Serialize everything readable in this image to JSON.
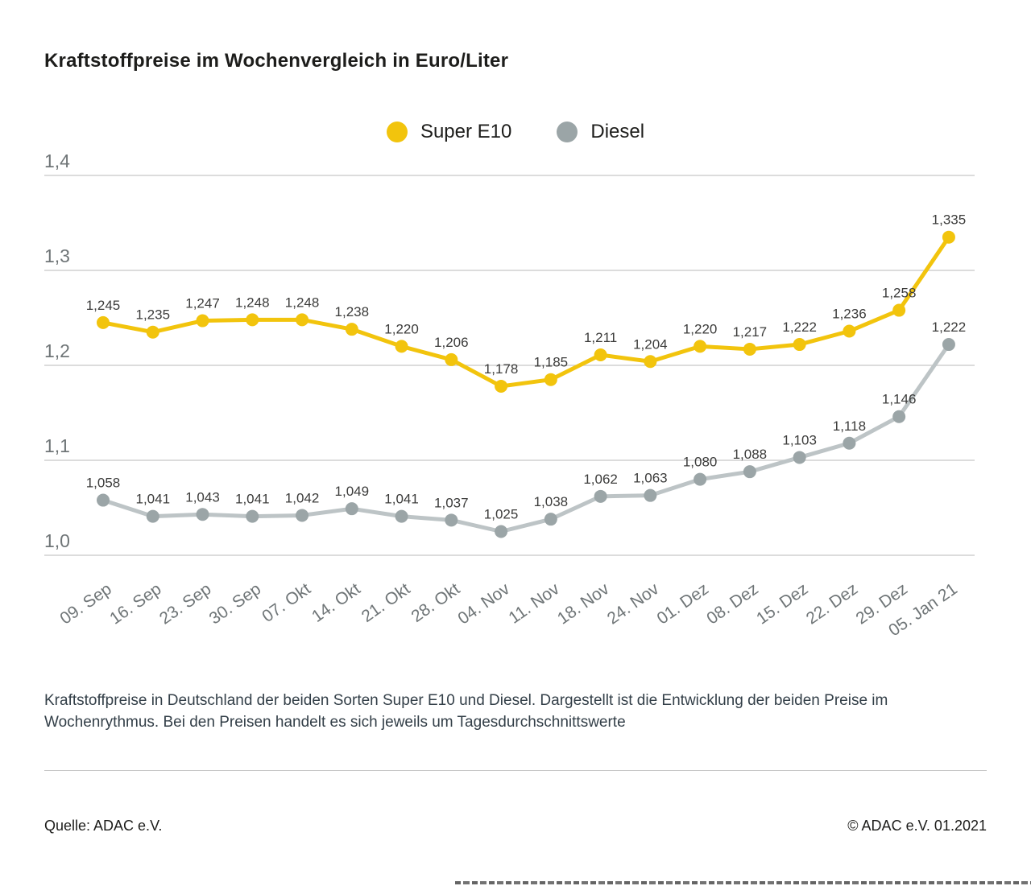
{
  "page": {
    "title": "Kraftstoffpreise im Wochenvergleich in Euro/Liter",
    "caption": "Kraftstoffpreise in Deutschland der beiden Sorten Super E10 und Diesel. Dargestellt ist die Entwicklung der beiden Preise im Wochenrythmus. Bei den Preisen handelt es sich jeweils um Tagesdurchschnittswerte",
    "source_left": "Quelle: ADAC e.V.",
    "source_right": "© ADAC e.V. 01.2021"
  },
  "chart_data": {
    "type": "line",
    "title": "Kraftstoffpreise im Wochenvergleich in Euro/Liter",
    "unit": "Euro/Liter",
    "categories": [
      "09. Sep",
      "16. Sep",
      "23. Sep",
      "30. Sep",
      "07. Okt",
      "14. Okt",
      "21. Okt",
      "28. Okt",
      "04. Nov",
      "11. Nov",
      "18. Nov",
      "24. Nov",
      "01. Dez",
      "08. Dez",
      "15. Dez",
      "22. Dez",
      "29. Dez",
      "05. Jan 21"
    ],
    "series": [
      {
        "name": "Super E10",
        "line_color": "#f2c40d",
        "dot_color": "#f2c40d",
        "values": [
          1.245,
          1.235,
          1.247,
          1.248,
          1.248,
          1.238,
          1.22,
          1.206,
          1.178,
          1.185,
          1.211,
          1.204,
          1.22,
          1.217,
          1.222,
          1.236,
          1.258,
          1.335
        ]
      },
      {
        "name": "Diesel",
        "line_color": "#bdc4c6",
        "dot_color": "#9ba5a7",
        "values": [
          1.058,
          1.041,
          1.043,
          1.041,
          1.042,
          1.049,
          1.041,
          1.037,
          1.025,
          1.038,
          1.062,
          1.063,
          1.08,
          1.088,
          1.103,
          1.118,
          1.146,
          1.222
        ]
      }
    ],
    "ylim": [
      1.0,
      1.4
    ],
    "yticks": [
      1.4,
      1.3,
      1.2,
      1.1,
      1.0
    ],
    "ytick_labels": [
      "1,4",
      "1,3",
      "1,2",
      "1,1",
      "1,0"
    ],
    "grid": true,
    "legend_position": "top-center",
    "value_labels": "above-points, comma decimal with 3 digits"
  }
}
